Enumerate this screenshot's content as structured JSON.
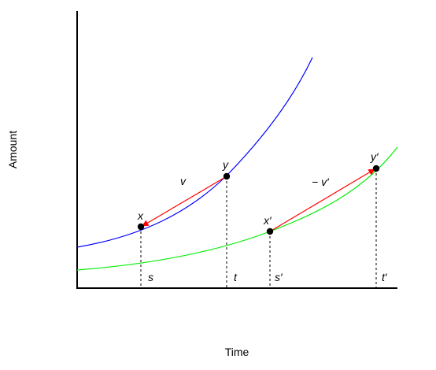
{
  "axes": {
    "xlabel": "Time",
    "ylabel": "Amount"
  },
  "colors": {
    "curve_upper": "#0000ff",
    "curve_lower": "#00ee00",
    "vector": "#ff0000",
    "point": "#000000",
    "axis": "#000000"
  },
  "curves": [
    {
      "name": "blue-curve",
      "color_key": "curve_upper"
    },
    {
      "name": "green-curve",
      "color_key": "curve_lower"
    }
  ],
  "points": [
    {
      "id": "x",
      "label": "x"
    },
    {
      "id": "y",
      "label": "y"
    },
    {
      "id": "x2",
      "label": "x′"
    },
    {
      "id": "y2",
      "label": "y′"
    }
  ],
  "vectors": [
    {
      "id": "v",
      "label": "v",
      "from": "y",
      "to": "x"
    },
    {
      "id": "neg-v2",
      "label": "− v′",
      "from": "x2",
      "to": "y2"
    }
  ],
  "times": [
    {
      "id": "s",
      "label": "s"
    },
    {
      "id": "t",
      "label": "t"
    },
    {
      "id": "s2",
      "label": "s′"
    },
    {
      "id": "t2",
      "label": "t′"
    }
  ]
}
